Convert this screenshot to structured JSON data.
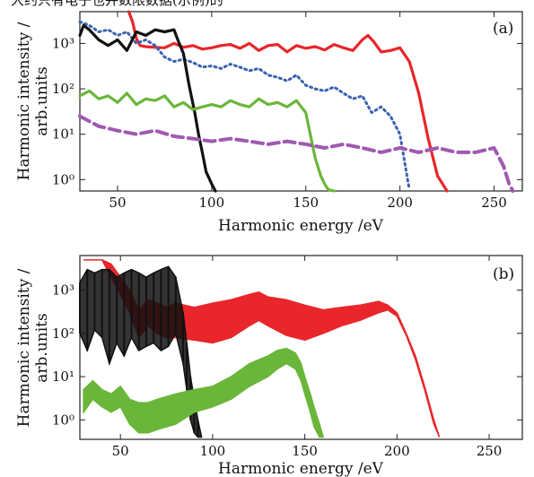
{
  "header_fragment": "大约只有电子也并数限数据(示例)的",
  "chart_data": [
    {
      "type": "line",
      "panel": "(a)",
      "xlabel": "Harmonic energy /eV",
      "ylabel": [
        "Harmonic intensity /",
        "arb.units"
      ],
      "xlim": [
        30,
        265
      ],
      "ylim_log10": [
        -0.25,
        3.7
      ],
      "log_y": true,
      "xticks": [
        50,
        100,
        150,
        200,
        250
      ],
      "xtick_labels": [
        "50",
        "100",
        "150",
        "200",
        "250"
      ],
      "yticks": [
        1,
        10,
        100,
        1000
      ],
      "ytick_labels": [
        "10⁰",
        "10¹",
        "10²",
        "10³"
      ],
      "grid": false,
      "legend": "none",
      "series": [
        {
          "color": "#e8262b",
          "style": "solid",
          "x": [
            56,
            58,
            60,
            62,
            65,
            70,
            75,
            80,
            85,
            90,
            95,
            100,
            105,
            110,
            115,
            120,
            125,
            130,
            135,
            140,
            145,
            150,
            155,
            160,
            165,
            170,
            175,
            180,
            183,
            186,
            190,
            195,
            200,
            205,
            210,
            215,
            220,
            225
          ],
          "y": [
            5000,
            3000,
            1300,
            900,
            850,
            820,
            800,
            1000,
            820,
            900,
            750,
            800,
            900,
            950,
            780,
            1000,
            700,
            900,
            950,
            650,
            900,
            780,
            850,
            720,
            950,
            800,
            700,
            1200,
            1500,
            1100,
            650,
            700,
            800,
            400,
            80,
            8,
            1.2,
            0.5
          ]
        },
        {
          "color": "#3a62b0",
          "style": "dotted",
          "x": [
            30,
            35,
            40,
            45,
            50,
            55,
            60,
            65,
            70,
            75,
            80,
            85,
            90,
            95,
            100,
            105,
            110,
            115,
            120,
            125,
            130,
            135,
            140,
            145,
            150,
            155,
            160,
            165,
            170,
            175,
            180,
            185,
            190,
            195,
            200,
            205
          ],
          "y": [
            3000,
            2500,
            1800,
            2000,
            1500,
            1800,
            1000,
            1200,
            900,
            500,
            400,
            450,
            380,
            300,
            320,
            280,
            350,
            300,
            250,
            280,
            200,
            180,
            150,
            200,
            120,
            100,
            90,
            110,
            80,
            60,
            70,
            30,
            40,
            25,
            10,
            0.6
          ]
        },
        {
          "color": "#111111",
          "style": "solid",
          "x": [
            30,
            32,
            35,
            40,
            45,
            50,
            55,
            60,
            65,
            70,
            75,
            80,
            82,
            85,
            88,
            91,
            93,
            95,
            97,
            100,
            102
          ],
          "y": [
            1500,
            2500,
            2000,
            1200,
            900,
            1200,
            700,
            1800,
            1500,
            2000,
            1800,
            2000,
            1200,
            600,
            120,
            30,
            10,
            4,
            1.5,
            0.8,
            0.5
          ]
        },
        {
          "color": "#6ab63a",
          "style": "solid",
          "x": [
            30,
            35,
            40,
            45,
            50,
            55,
            60,
            65,
            70,
            75,
            80,
            85,
            90,
            95,
            100,
            105,
            110,
            115,
            120,
            125,
            130,
            135,
            140,
            145,
            150,
            155,
            158,
            160,
            162,
            165
          ],
          "y": [
            70,
            90,
            60,
            70,
            50,
            80,
            45,
            60,
            55,
            70,
            40,
            50,
            35,
            40,
            45,
            40,
            55,
            45,
            40,
            60,
            45,
            50,
            40,
            55,
            30,
            3,
            1.2,
            0.8,
            0.6,
            0.5
          ]
        },
        {
          "color": "#a05ab0",
          "style": "dashed",
          "x": [
            30,
            40,
            50,
            60,
            70,
            80,
            90,
            100,
            110,
            120,
            130,
            140,
            150,
            160,
            170,
            180,
            190,
            200,
            210,
            220,
            230,
            240,
            250,
            255,
            258,
            260
          ],
          "y": [
            25,
            15,
            12,
            10,
            12,
            9,
            8,
            7,
            8,
            7,
            6,
            7,
            6,
            5,
            6,
            5,
            4,
            5,
            4,
            5,
            4,
            4,
            5,
            2,
            0.8,
            0.5
          ]
        }
      ]
    },
    {
      "type": "line",
      "panel": "(b)",
      "xlabel": "Harmonic energy /eV",
      "ylabel": [
        "Harmonic intensity /",
        "arb.units"
      ],
      "xlim": [
        28,
        268
      ],
      "ylim_log10": [
        -0.45,
        3.8
      ],
      "log_y": true,
      "xticks": [
        50,
        100,
        150,
        200,
        250
      ],
      "xtick_labels": [
        "50",
        "100",
        "150",
        "200",
        "250"
      ],
      "yticks": [
        1,
        10,
        100,
        1000
      ],
      "ytick_labels": [
        "10⁰",
        "10¹",
        "10²",
        "10³"
      ],
      "grid": false,
      "legend": "none",
      "series": [
        {
          "color": "#e8262b",
          "style": "band",
          "x": [
            30,
            35,
            40,
            45,
            50,
            55,
            60,
            65,
            70,
            75,
            80,
            90,
            100,
            110,
            120,
            125,
            130,
            140,
            150,
            160,
            170,
            180,
            190,
            195,
            200,
            205,
            210,
            215,
            220,
            223
          ],
          "y_high": [
            5000,
            5000,
            5000,
            4000,
            2000,
            1000,
            350,
            600,
            500,
            400,
            500,
            400,
            500,
            600,
            800,
            900,
            700,
            600,
            450,
            350,
            400,
            450,
            550,
            450,
            300,
            100,
            30,
            6,
            1,
            0.4
          ],
          "y_low": [
            5000,
            5000,
            5000,
            2000,
            800,
            300,
            80,
            150,
            100,
            80,
            80,
            70,
            60,
            80,
            150,
            200,
            150,
            90,
            70,
            100,
            150,
            200,
            300,
            350,
            250,
            90,
            25,
            5,
            0.8,
            0.4
          ]
        },
        {
          "color": "#111111",
          "style": "dense",
          "x": [
            28,
            32,
            36,
            40,
            44,
            48,
            52,
            56,
            60,
            64,
            68,
            72,
            76,
            80,
            84,
            86,
            88,
            90,
            92,
            94
          ],
          "y_high": [
            1500,
            3000,
            2500,
            3000,
            3000,
            2000,
            2500,
            3000,
            2500,
            2000,
            2500,
            3000,
            3500,
            2000,
            300,
            60,
            10,
            3,
            1,
            0.4
          ],
          "y_low": [
            100,
            40,
            120,
            80,
            20,
            60,
            30,
            80,
            40,
            50,
            60,
            40,
            50,
            100,
            20,
            5,
            1,
            0.5,
            0.4,
            0.4
          ]
        },
        {
          "color": "#6ab63a",
          "style": "band",
          "x": [
            30,
            35,
            40,
            45,
            50,
            55,
            60,
            65,
            70,
            80,
            90,
            100,
            110,
            120,
            130,
            135,
            140,
            145,
            148,
            150,
            153,
            155,
            158,
            160
          ],
          "y_high": [
            5,
            8,
            5,
            4,
            6,
            3,
            2.5,
            2.5,
            3,
            4,
            5,
            6,
            10,
            20,
            30,
            40,
            45,
            35,
            20,
            10,
            4,
            2,
            0.8,
            0.4
          ],
          "y_low": [
            1.5,
            3,
            2,
            1.5,
            2,
            0.8,
            0.5,
            0.5,
            0.6,
            0.8,
            1.5,
            2,
            3,
            6,
            10,
            15,
            20,
            15,
            8,
            4,
            1.5,
            0.7,
            0.4,
            0.4
          ]
        }
      ]
    }
  ]
}
